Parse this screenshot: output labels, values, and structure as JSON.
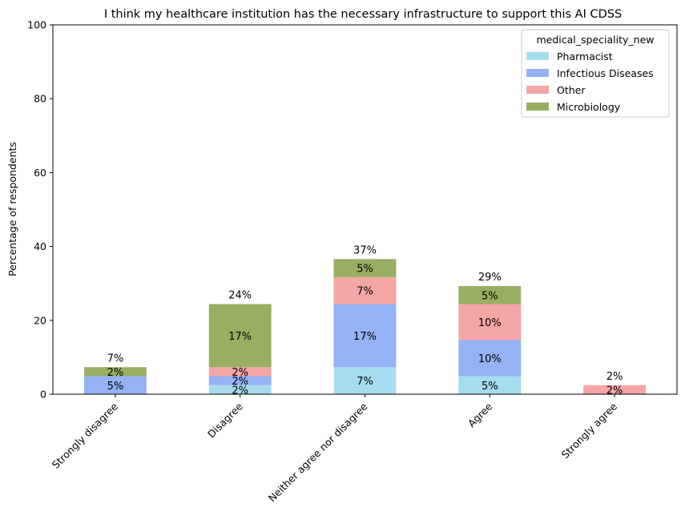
{
  "chart_data": {
    "type": "bar",
    "stacked": true,
    "title": "I think my healthcare institution has the necessary infrastructure to support this AI CDSS",
    "xlabel": "",
    "ylabel": "Percentage of respondents",
    "ylim": [
      0,
      100
    ],
    "yticks": [
      0,
      20,
      40,
      60,
      80,
      100
    ],
    "grid": false,
    "categories": [
      "Strongly disagree",
      "Disagree",
      "Neither agree nor disagree",
      "Agree",
      "Strongly agree"
    ],
    "series": [
      {
        "name": "Pharmacist",
        "color": "#a6dcef",
        "values": [
          0,
          2.44,
          7.32,
          4.88,
          0
        ],
        "labels": [
          "",
          "2%",
          "7%",
          "5%",
          ""
        ]
      },
      {
        "name": "Infectious Diseases",
        "color": "#94b2f5",
        "values": [
          4.88,
          2.44,
          17.07,
          9.76,
          0
        ],
        "labels": [
          "5%",
          "2%",
          "17%",
          "10%",
          ""
        ]
      },
      {
        "name": "Other",
        "color": "#f4a5a5",
        "values": [
          0,
          2.44,
          7.32,
          9.76,
          2.44
        ],
        "labels": [
          "",
          "2%",
          "7%",
          "10%",
          "2%"
        ]
      },
      {
        "name": "Microbiology",
        "color": "#98ae62",
        "values": [
          2.44,
          17.07,
          4.88,
          4.88,
          0
        ],
        "labels": [
          "2%",
          "17%",
          "5%",
          "5%",
          ""
        ]
      }
    ],
    "totals": [
      7.32,
      24.39,
      36.59,
      29.27,
      2.44
    ],
    "total_labels": [
      "7%",
      "24%",
      "37%",
      "29%",
      "2%"
    ],
    "legend": {
      "title": "medical_speciality_new",
      "placement": "top-right"
    }
  }
}
